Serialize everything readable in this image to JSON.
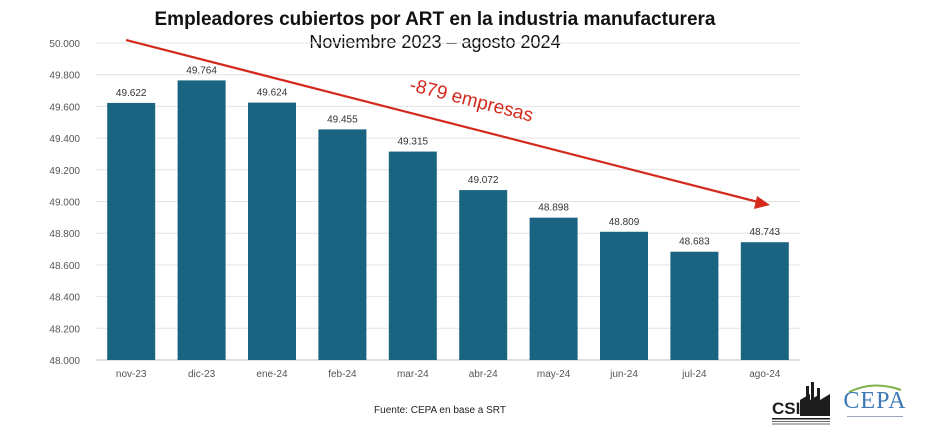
{
  "title": "Empleadores cubiertos por ART en la industria manufacturera",
  "subtitle": "Noviembre 2023 – agosto 2024",
  "source": "Fuente: CEPA en base a SRT",
  "annotation": "-879 empresas",
  "logos": {
    "cepa": "CEPA"
  },
  "colors": {
    "bar": "#1a6482",
    "arrow": "#d42a1e",
    "grid": "#e4e4e4"
  },
  "chart_data": {
    "type": "bar",
    "categories": [
      "nov-23",
      "dic-23",
      "ene-24",
      "feb-24",
      "mar-24",
      "abr-24",
      "may-24",
      "jun-24",
      "jul-24",
      "ago-24"
    ],
    "values": [
      49622,
      49764,
      49624,
      49455,
      49315,
      49072,
      48898,
      48809,
      48683,
      48743
    ],
    "value_labels": [
      "49.622",
      "49.764",
      "49.624",
      "49.455",
      "49.315",
      "49.072",
      "48.898",
      "48.809",
      "48.683",
      "48.743"
    ],
    "ylim": [
      48000,
      50000
    ],
    "yticks": [
      48000,
      48200,
      48400,
      48600,
      48800,
      49000,
      49200,
      49400,
      49600,
      49800,
      50000
    ],
    "ytick_labels": [
      "48.000",
      "48.200",
      "48.400",
      "48.600",
      "48.800",
      "49.000",
      "49.200",
      "49.400",
      "49.600",
      "49.800",
      "50.000"
    ],
    "grid": true
  }
}
